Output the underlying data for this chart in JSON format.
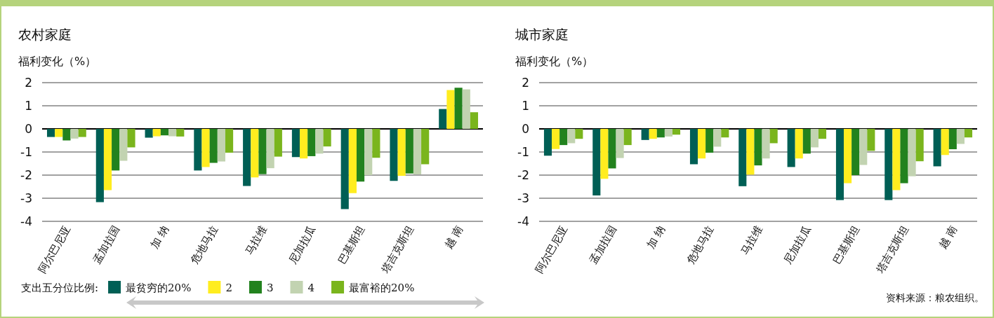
{
  "chart_data": [
    {
      "type": "bar",
      "title": "农村家庭",
      "ylabel": "福利变化（%）",
      "categories": [
        "阿尔巴尼亚",
        "孟加拉国",
        "加 纳",
        "危地马拉",
        "马拉维",
        "尼加拉瓜",
        "巴基斯坦",
        "塔吉克斯坦",
        "越 南"
      ],
      "ylim": [
        -4,
        2
      ],
      "yticks": [
        -4,
        -3,
        -2,
        -1,
        0,
        1,
        2
      ],
      "grid": "y",
      "legend": "bottom",
      "legend_title": "支出五分位比例:",
      "series": [
        {
          "name": "最贫穷的20%",
          "color": "#005f55",
          "values": [
            -0.35,
            -3.17,
            -0.38,
            -1.8,
            -2.47,
            -1.22,
            -3.47,
            -2.25,
            0.86
          ]
        },
        {
          "name": "2",
          "color": "#ffed1f",
          "values": [
            -0.35,
            -2.65,
            -0.32,
            -1.65,
            -2.1,
            -1.28,
            -2.78,
            -2.03,
            1.68
          ]
        },
        {
          "name": "3",
          "color": "#22821e",
          "values": [
            -0.5,
            -1.8,
            -0.28,
            -1.47,
            -1.96,
            -1.18,
            -2.28,
            -1.93,
            1.78
          ]
        },
        {
          "name": "4",
          "color": "#c2d3b1",
          "values": [
            -0.42,
            -1.38,
            -0.32,
            -1.41,
            -1.7,
            -1.07,
            -2.0,
            -1.97,
            1.71
          ]
        },
        {
          "name": "最富裕的20%",
          "color": "#7ab51d",
          "values": [
            -0.35,
            -0.8,
            -0.33,
            -1.03,
            -1.2,
            -0.76,
            -1.25,
            -1.53,
            0.72
          ]
        }
      ]
    },
    {
      "type": "bar",
      "title": "城市家庭",
      "ylabel": "福利变化（%）",
      "categories": [
        "阿尔巴尼亚",
        "孟加拉国",
        "加 纳",
        "危地马拉",
        "马拉维",
        "尼加拉瓜",
        "巴基斯坦",
        "塔吉克斯坦",
        "越 南"
      ],
      "ylim": [
        -4,
        2
      ],
      "yticks": [
        -4,
        -3,
        -2,
        -1,
        0,
        1,
        2
      ],
      "grid": "y",
      "annotations": [
        "资料来源：粮农组织。"
      ],
      "series": [
        {
          "color": "#005f55",
          "values": [
            -1.16,
            -2.88,
            -0.48,
            -1.53,
            -2.48,
            -1.65,
            -3.08,
            -3.08,
            -1.62
          ]
        },
        {
          "color": "#ffed1f",
          "values": [
            -0.87,
            -2.16,
            -0.43,
            -1.28,
            -1.98,
            -1.28,
            -2.35,
            -2.65,
            -1.13
          ]
        },
        {
          "color": "#22821e",
          "values": [
            -0.7,
            -1.71,
            -0.37,
            -1.03,
            -1.58,
            -1.07,
            -2.0,
            -2.35,
            -0.88
          ]
        },
        {
          "color": "#c2d3b1",
          "values": [
            -0.62,
            -1.26,
            -0.33,
            -0.77,
            -1.28,
            -0.8,
            -1.56,
            -2.05,
            -0.65
          ]
        },
        {
          "color": "#7ab51d",
          "values": [
            -0.43,
            -0.7,
            -0.25,
            -0.37,
            -0.62,
            -0.43,
            -0.95,
            -1.4,
            -0.37
          ]
        }
      ]
    }
  ]
}
